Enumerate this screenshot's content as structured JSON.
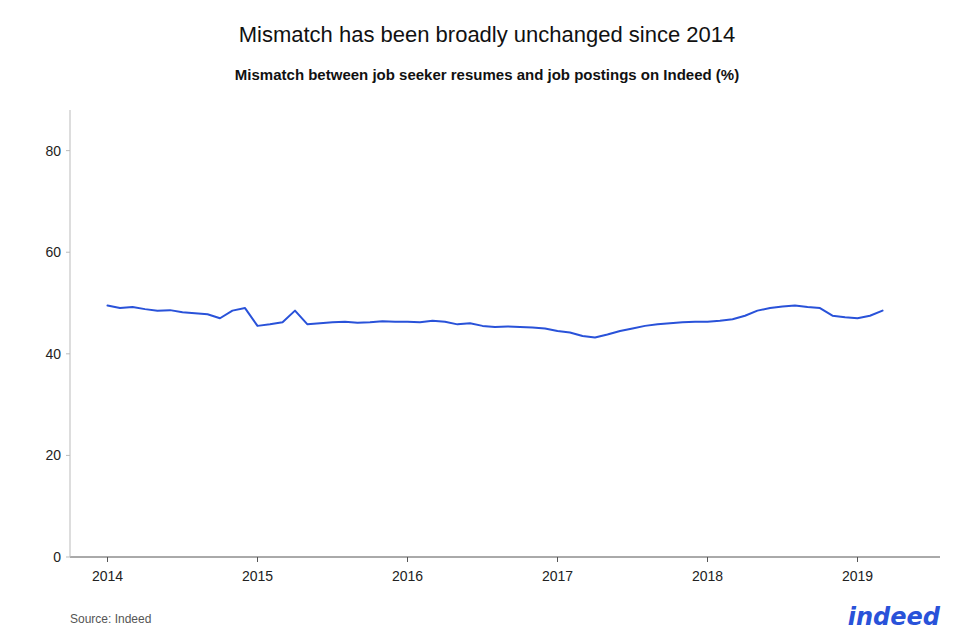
{
  "chart_data": {
    "type": "line",
    "title": "Mismatch has been broadly unchanged since 2014",
    "subtitle": "Mismatch between job seeker resumes and job postings on Indeed (%)",
    "source": "Source: Indeed",
    "annotations": [
      "indeed"
    ],
    "color": "#2952d9",
    "grid": false,
    "xlim": [
      2013.75,
      2019.55
    ],
    "xticks": [
      2014,
      2015,
      2016,
      2017,
      2018,
      2019
    ],
    "ylim": [
      0,
      88
    ],
    "yticks": [
      0,
      20,
      40,
      60,
      80
    ],
    "x": [
      2014.0,
      2014.083,
      2014.167,
      2014.25,
      2014.333,
      2014.417,
      2014.5,
      2014.583,
      2014.667,
      2014.75,
      2014.833,
      2014.917,
      2015.0,
      2015.083,
      2015.167,
      2015.25,
      2015.333,
      2015.417,
      2015.5,
      2015.583,
      2015.667,
      2015.75,
      2015.833,
      2015.917,
      2016.0,
      2016.083,
      2016.167,
      2016.25,
      2016.333,
      2016.417,
      2016.5,
      2016.583,
      2016.667,
      2016.75,
      2016.833,
      2016.917,
      2017.0,
      2017.083,
      2017.167,
      2017.25,
      2017.333,
      2017.417,
      2017.5,
      2017.583,
      2017.667,
      2017.75,
      2017.833,
      2017.917,
      2018.0,
      2018.083,
      2018.167,
      2018.25,
      2018.333,
      2018.417,
      2018.5,
      2018.583,
      2018.667,
      2018.75,
      2018.833,
      2018.917,
      2019.0,
      2019.083,
      2019.167
    ],
    "values": [
      49.5,
      49.0,
      49.2,
      48.8,
      48.5,
      48.6,
      48.2,
      48.0,
      47.8,
      47.0,
      48.5,
      49.0,
      45.5,
      45.8,
      46.2,
      48.5,
      45.8,
      46.0,
      46.2,
      46.3,
      46.1,
      46.2,
      46.4,
      46.3,
      46.3,
      46.2,
      46.5,
      46.3,
      45.8,
      46.0,
      45.5,
      45.3,
      45.4,
      45.3,
      45.2,
      45.0,
      44.5,
      44.2,
      43.5,
      43.2,
      43.8,
      44.5,
      45.0,
      45.5,
      45.8,
      46.0,
      46.2,
      46.3,
      46.3,
      46.5,
      46.8,
      47.5,
      48.5,
      49.0,
      49.3,
      49.5,
      49.2,
      49.0,
      47.5,
      47.2,
      47.0,
      47.5,
      48.5
    ]
  }
}
